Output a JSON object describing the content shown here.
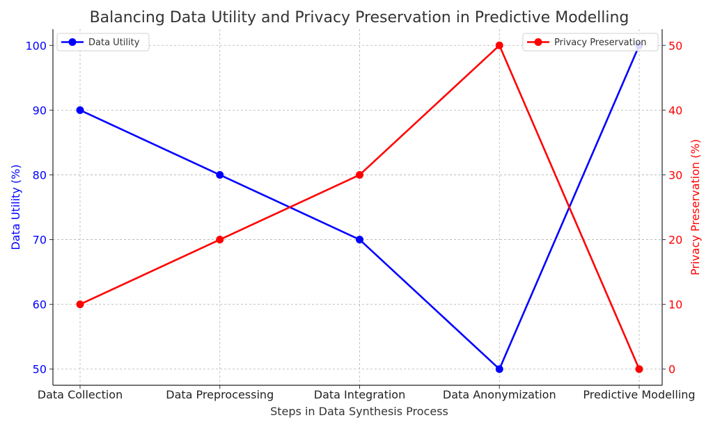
{
  "chart_data": {
    "type": "line",
    "title": "Balancing Data Utility and Privacy Preservation in Predictive Modelling",
    "xlabel": "Steps in Data Synthesis Process",
    "categories": [
      "Data Collection",
      "Data Preprocessing",
      "Data Integration",
      "Data Anonymization",
      "Predictive Modelling"
    ],
    "series": [
      {
        "name": "Data Utility",
        "axis": "left",
        "color": "#0000ff",
        "values": [
          90,
          80,
          70,
          50,
          100
        ]
      },
      {
        "name": "Privacy Preservation",
        "axis": "right",
        "color": "#ff0000",
        "values": [
          10,
          20,
          30,
          50,
          0
        ]
      }
    ],
    "left_axis": {
      "label": "Data Utility (%)",
      "color": "#0000ff",
      "ylim": [
        47.5,
        102.5
      ],
      "ticks": [
        "50",
        "60",
        "70",
        "80",
        "90",
        "100"
      ]
    },
    "right_axis": {
      "label": "Privacy Preservation (%)",
      "color": "#ff0000",
      "ylim": [
        -2.5,
        52.5
      ],
      "ticks": [
        "0",
        "10",
        "20",
        "30",
        "40",
        "50"
      ]
    },
    "grid": true,
    "legends": [
      {
        "series": "Data Utility",
        "placement": "top-left"
      },
      {
        "series": "Privacy Preservation",
        "placement": "top-right"
      }
    ]
  }
}
